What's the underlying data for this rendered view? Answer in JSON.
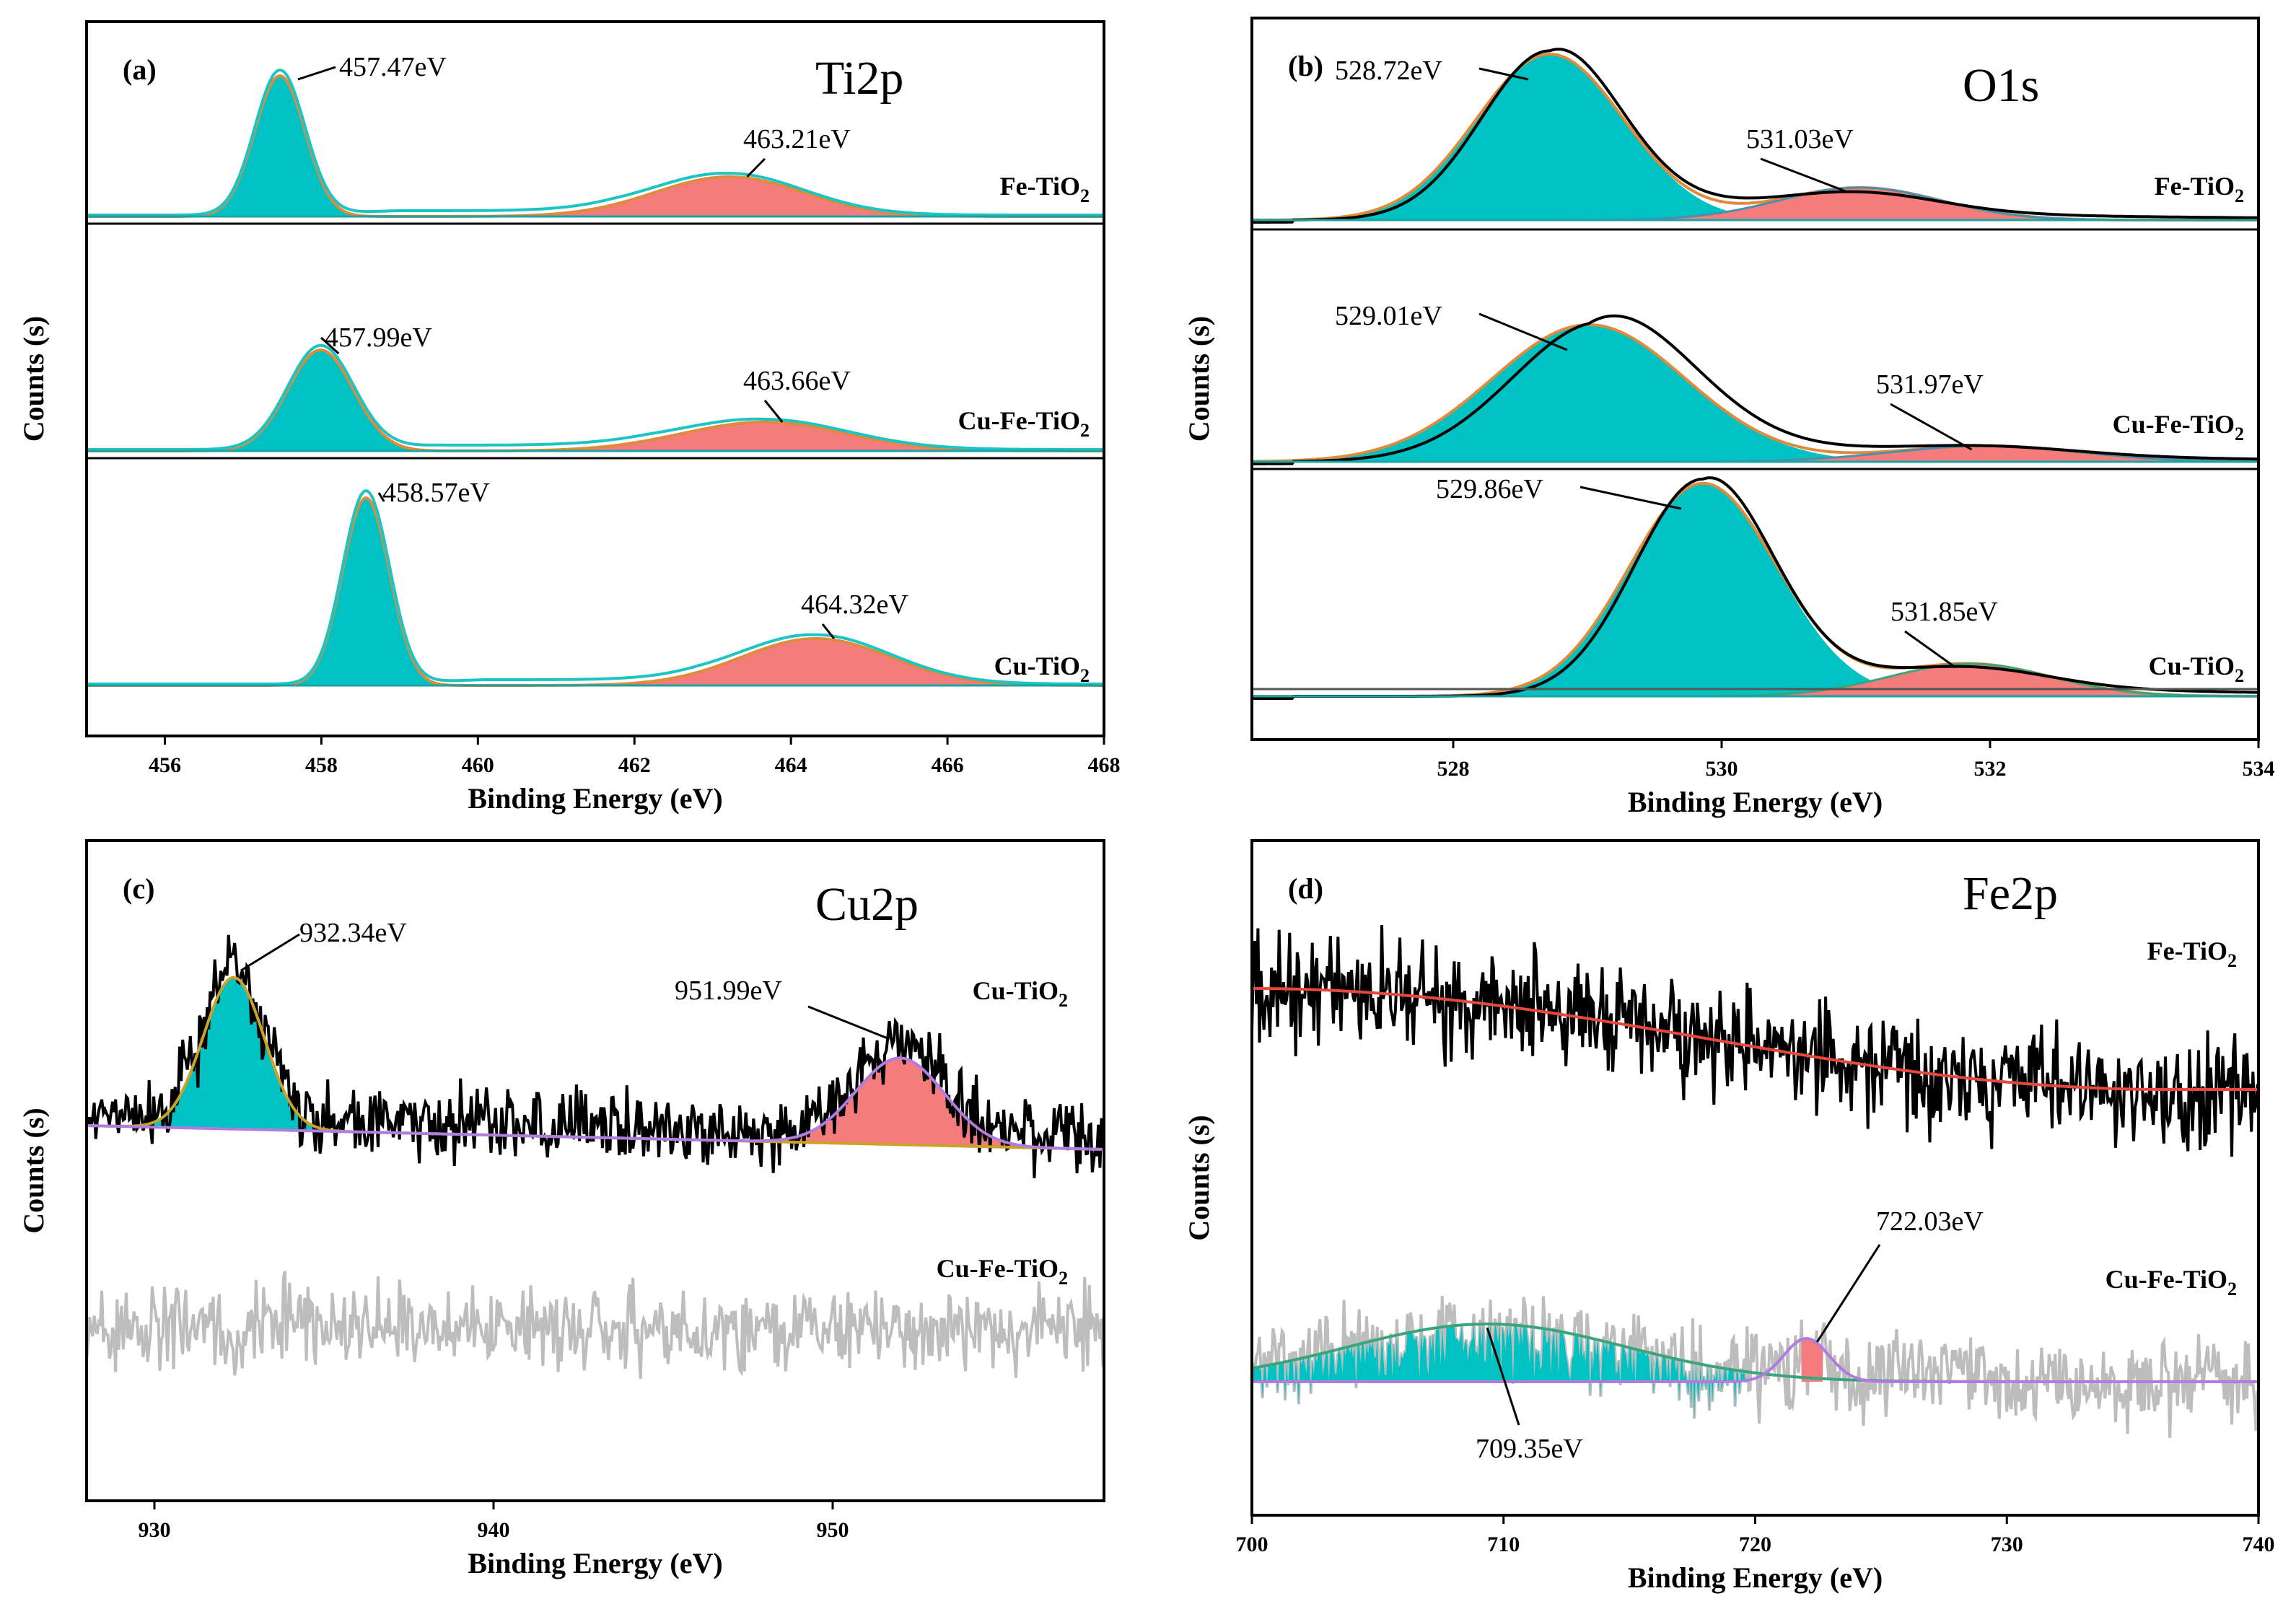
{
  "colors": {
    "teal": "#00c2c2",
    "salmon": "#f47c7c",
    "orange": "#e08a3c",
    "cyan": "#1cc4c4",
    "black": "#000000",
    "gray": "#bdbdbd",
    "purple": "#b07ce0",
    "olive": "#c9a227",
    "green": "#3aa57a",
    "red": "#e8473c"
  },
  "chart_data": [
    {
      "id": "a",
      "type": "line",
      "panel_label": "(a)",
      "title": "Ti2p",
      "xlabel": "Binding Energy (eV)",
      "ylabel": "Counts (s)",
      "xlim": [
        455,
        468
      ],
      "xticks": [
        456,
        458,
        460,
        462,
        464,
        466,
        468
      ],
      "series": [
        {
          "name": "Fe-TiO",
          "sub": "2",
          "peaks": [
            {
              "x": 457.47,
              "label": "457.47eV",
              "fill": "teal"
            },
            {
              "x": 463.21,
              "label": "463.21eV",
              "fill": "salmon"
            }
          ]
        },
        {
          "name": "Cu-Fe-TiO",
          "sub": "2",
          "peaks": [
            {
              "x": 457.99,
              "label": "457.99eV",
              "fill": "teal"
            },
            {
              "x": 463.66,
              "label": "463.66eV",
              "fill": "salmon"
            }
          ]
        },
        {
          "name": "Cu-TiO",
          "sub": "2",
          "peaks": [
            {
              "x": 458.57,
              "label": "458.57eV",
              "fill": "teal"
            },
            {
              "x": 464.32,
              "label": "464.32eV",
              "fill": "salmon"
            }
          ]
        }
      ]
    },
    {
      "id": "b",
      "type": "line",
      "panel_label": "(b)",
      "title": "O1s",
      "xlabel": "Binding Energy (eV)",
      "ylabel": "Counts (s)",
      "xlim": [
        526.5,
        534
      ],
      "xticks": [
        528,
        530,
        532,
        534
      ],
      "series": [
        {
          "name": "Fe-TiO",
          "sub": "2",
          "peaks": [
            {
              "x": 528.72,
              "label": "528.72eV",
              "fill": "teal"
            },
            {
              "x": 531.03,
              "label": "531.03eV",
              "fill": "salmon"
            }
          ]
        },
        {
          "name": "Cu-Fe-TiO",
          "sub": "2",
          "peaks": [
            {
              "x": 529.01,
              "label": "529.01eV",
              "fill": "teal"
            },
            {
              "x": 531.97,
              "label": "531.97eV",
              "fill": "salmon"
            }
          ]
        },
        {
          "name": "Cu-TiO",
          "sub": "2",
          "peaks": [
            {
              "x": 529.86,
              "label": "529.86eV",
              "fill": "teal"
            },
            {
              "x": 531.85,
              "label": "531.85eV",
              "fill": "salmon"
            }
          ]
        }
      ]
    },
    {
      "id": "c",
      "type": "line",
      "panel_label": "(c)",
      "title": "Cu2p",
      "xlabel": "Binding Energy (eV)",
      "ylabel": "Counts (s)",
      "xlim": [
        928,
        958
      ],
      "xticks": [
        930,
        940,
        950
      ],
      "series": [
        {
          "name": "Cu-TiO",
          "sub": "2",
          "peaks": [
            {
              "x": 932.34,
              "label": "932.34eV",
              "fill": "teal"
            },
            {
              "x": 951.99,
              "label": "951.99eV",
              "fill": "salmon"
            }
          ]
        },
        {
          "name": "Cu-Fe-TiO",
          "sub": "2",
          "peaks": []
        }
      ]
    },
    {
      "id": "d",
      "type": "line",
      "panel_label": "(d)",
      "title": "Fe2p",
      "xlabel": "Binding Energy (eV)",
      "ylabel": "Counts (s)",
      "xlim": [
        700,
        740
      ],
      "xticks": [
        700,
        710,
        720,
        730,
        740
      ],
      "series": [
        {
          "name": "Fe-TiO",
          "sub": "2",
          "peaks": []
        },
        {
          "name": "Cu-Fe-TiO",
          "sub": "2",
          "peaks": [
            {
              "x": 709.35,
              "label": "709.35eV",
              "fill": "teal"
            },
            {
              "x": 722.03,
              "label": "722.03eV",
              "fill": "salmon"
            }
          ]
        }
      ]
    }
  ]
}
